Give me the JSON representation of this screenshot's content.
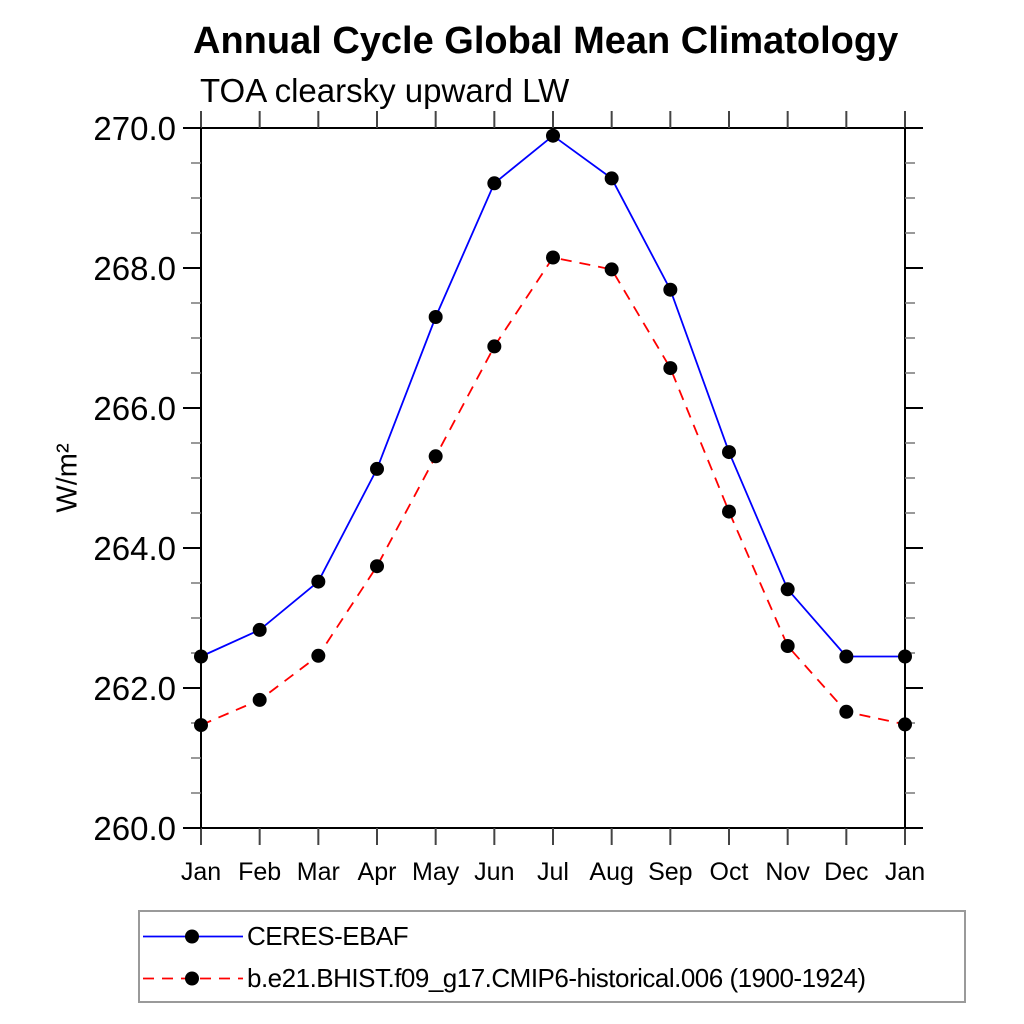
{
  "title": "Annual Cycle Global Mean Climatology",
  "subtitle": "TOA clearsky upward LW",
  "chart_data": {
    "type": "line",
    "title": "Annual Cycle Global Mean Climatology",
    "subtitle": "TOA clearsky upward LW",
    "ylabel": "W/m²",
    "categories": [
      "Jan",
      "Feb",
      "Mar",
      "Apr",
      "May",
      "Jun",
      "Jul",
      "Aug",
      "Sep",
      "Oct",
      "Nov",
      "Dec",
      "Jan"
    ],
    "ylim": [
      260.0,
      270.0
    ],
    "ytick_labels": [
      "260.0",
      "262.0",
      "264.0",
      "266.0",
      "268.0",
      "270.0"
    ],
    "ytick_major_step": 2.0,
    "ytick_minor_step": 0.5,
    "grid": false,
    "legend_position": "bottom-left-box",
    "series": [
      {
        "name": "CERES-EBAF",
        "color": "#0000ff",
        "line_style": "solid",
        "marker": "filled-circle",
        "marker_color": "#000000",
        "values": [
          262.45,
          262.83,
          263.52,
          265.13,
          267.3,
          269.21,
          269.89,
          269.28,
          267.69,
          265.37,
          263.41,
          262.45,
          262.45
        ]
      },
      {
        "name": "b.e21.BHIST.f09_g17.CMIP6-historical.006 (1900-1924)",
        "color": "#ff0000",
        "line_style": "dashed",
        "marker": "filled-circle",
        "marker_color": "#000000",
        "values": [
          261.47,
          261.83,
          262.46,
          263.74,
          265.31,
          266.88,
          268.15,
          267.98,
          266.57,
          264.52,
          262.6,
          261.66,
          261.48
        ]
      }
    ]
  }
}
